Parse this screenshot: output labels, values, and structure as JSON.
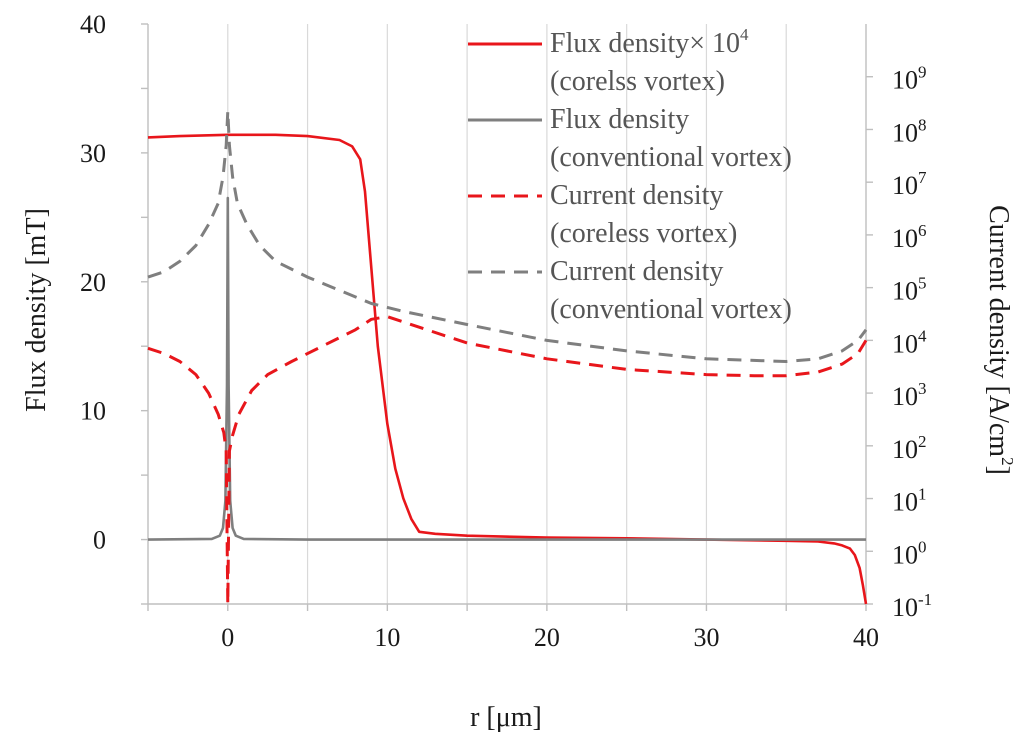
{
  "chart_data": {
    "type": "line",
    "xlabel": "r [μm]",
    "ylabel_left": "Flux density [mT]",
    "ylabel_right": {
      "base": "Current density [A/cm",
      "sup": "2",
      "end": "]"
    },
    "xlim": [
      -5,
      40
    ],
    "ylim_left": [
      -5,
      40
    ],
    "ylim_right_log10": [
      -1,
      10
    ],
    "x_ticks": [
      0,
      10,
      20,
      30,
      40
    ],
    "y_left_ticks": [
      0,
      10,
      20,
      30,
      40
    ],
    "y_right_ticks": [
      {
        "base": "10",
        "exp": "-1",
        "v": -1
      },
      {
        "base": "10",
        "exp": "0",
        "v": 0
      },
      {
        "base": "10",
        "exp": "1",
        "v": 1
      },
      {
        "base": "10",
        "exp": "2",
        "v": 2
      },
      {
        "base": "10",
        "exp": "3",
        "v": 3
      },
      {
        "base": "10",
        "exp": "4",
        "v": 4
      },
      {
        "base": "10",
        "exp": "5",
        "v": 5
      },
      {
        "base": "10",
        "exp": "6",
        "v": 6
      },
      {
        "base": "10",
        "exp": "7",
        "v": 7
      },
      {
        "base": "10",
        "exp": "8",
        "v": 8
      },
      {
        "base": "10",
        "exp": "9",
        "v": 9
      }
    ],
    "legend_position": "top-right",
    "series": [
      {
        "name_lines": [
          "Flux density× 10",
          "(corelss vortex)"
        ],
        "name_sup": "4",
        "axis": "left",
        "color": "#e8161b",
        "dash": "solid",
        "x": [
          -5,
          -3,
          0,
          3,
          5,
          7,
          7.8,
          8.3,
          8.6,
          9,
          9.4,
          10,
          10.5,
          11,
          11.5,
          12,
          13,
          15,
          20,
          25,
          30,
          35,
          37,
          38,
          38.5,
          39,
          39.3,
          39.6,
          39.8,
          40
        ],
        "y": [
          31.2,
          31.3,
          31.4,
          31.4,
          31.3,
          31.0,
          30.5,
          29.5,
          27.0,
          21.0,
          15.0,
          9.0,
          5.5,
          3.2,
          1.6,
          0.6,
          0.45,
          0.3,
          0.15,
          0.1,
          0.0,
          -0.1,
          -0.15,
          -0.3,
          -0.45,
          -0.7,
          -1.2,
          -2.2,
          -3.5,
          -5
        ]
      },
      {
        "name_lines": [
          "Flux density",
          "(conventional vortex)"
        ],
        "axis": "left",
        "color": "#7f7f7f",
        "dash": "solid",
        "x": [
          -5,
          -1,
          -0.5,
          -0.3,
          -0.15,
          -0.05,
          0,
          0.05,
          0.15,
          0.3,
          0.5,
          1,
          5,
          40
        ],
        "y": [
          0,
          0.05,
          0.3,
          0.9,
          3,
          12,
          26.5,
          12,
          3,
          0.9,
          0.3,
          0.05,
          0,
          0
        ]
      },
      {
        "name_lines": [
          "Current density",
          "(coreless vortex)"
        ],
        "axis": "right",
        "color": "#e8161b",
        "dash": "dashed",
        "x": [
          -5,
          -4,
          -3,
          -2,
          -1.2,
          -0.6,
          -0.25,
          -0.1,
          0,
          0.1,
          0.3,
          0.7,
          1.5,
          2.5,
          4,
          6,
          8,
          9,
          10,
          12,
          15,
          20,
          25,
          30,
          33,
          35,
          37,
          38.5,
          39.5,
          40
        ],
        "log10_y": [
          3.85,
          3.75,
          3.6,
          3.35,
          3.0,
          2.6,
          2.25,
          1.9,
          -1.0,
          1.9,
          2.2,
          2.6,
          3.05,
          3.35,
          3.6,
          3.9,
          4.2,
          4.4,
          4.45,
          4.25,
          3.95,
          3.65,
          3.45,
          3.35,
          3.33,
          3.33,
          3.4,
          3.55,
          3.75,
          4.0
        ]
      },
      {
        "name_lines": [
          "Current density",
          "(conventional vortex)"
        ],
        "axis": "right",
        "color": "#7f7f7f",
        "dash": "dashed",
        "x": [
          -5,
          -4,
          -3,
          -2,
          -1.2,
          -0.6,
          -0.3,
          -0.1,
          0,
          0.1,
          0.3,
          0.6,
          1.2,
          2,
          3,
          5,
          7,
          9,
          11,
          15,
          20,
          25,
          30,
          35,
          37,
          38.5,
          39.5,
          40
        ],
        "log10_y": [
          5.2,
          5.3,
          5.5,
          5.8,
          6.2,
          6.6,
          7.1,
          7.7,
          8.35,
          7.7,
          7.1,
          6.6,
          6.2,
          5.8,
          5.5,
          5.2,
          4.95,
          4.7,
          4.55,
          4.3,
          4.0,
          3.8,
          3.65,
          3.6,
          3.65,
          3.8,
          4.0,
          4.2
        ]
      }
    ]
  }
}
